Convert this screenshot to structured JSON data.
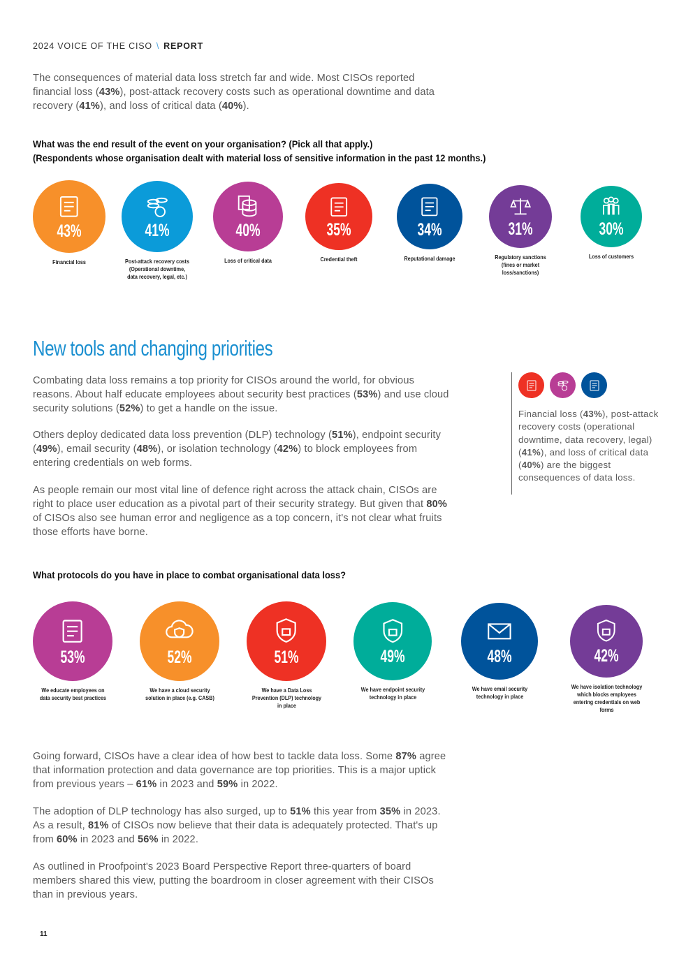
{
  "header": {
    "title": "2024 VOICE OF THE CISO",
    "separator": "\\",
    "section": "REPORT"
  },
  "intro": {
    "parts": [
      "The consequences of material data loss stretch far and wide. Most CISOs reported financial loss (",
      "43%",
      "), post-attack recovery costs such as operational downtime and data recovery (",
      "41%",
      "), and loss of critical data (",
      "40%",
      ")."
    ]
  },
  "question1": {
    "line1": "What was the end result of the event on your organisation? (Pick all that apply.)",
    "line2": "(Respondents whose organisation dealt with material loss of sensitive information in the past 12 months.)"
  },
  "results": [
    {
      "value": "43%",
      "label": "Financial loss",
      "color": "#f7902a",
      "icon": "money-hand-icon"
    },
    {
      "value": "41%",
      "label": "Post-attack recovery costs (Operational downtime, data recovery, legal, etc.)",
      "color": "#0b9bd9",
      "icon": "coins-icon"
    },
    {
      "value": "40%",
      "label": "Loss of critical data",
      "color": "#b83d95",
      "icon": "database-icon"
    },
    {
      "value": "35%",
      "label": "Credential theft",
      "color": "#ee3124",
      "icon": "document-icon"
    },
    {
      "value": "34%",
      "label": "Reputational damage",
      "color": "#00539b",
      "icon": "certificate-icon"
    },
    {
      "value": "31%",
      "label": "Regulatory sanctions (fines or market loss/sanctions)",
      "color": "#743c97",
      "icon": "scales-icon"
    },
    {
      "value": "30%",
      "label": "Loss of customers",
      "color": "#00ad9a",
      "icon": "people-icon"
    }
  ],
  "section2": {
    "title": "New tools and changing priorities",
    "p1": [
      "Combating data loss remains a top priority for CISOs around the world, for obvious reasons. About half educate employees about security best practices (",
      "53%",
      ") and use cloud security solutions (",
      "52%",
      ") to get a handle on the issue."
    ],
    "p2": [
      "Others deploy dedicated data loss prevention (DLP) technology (",
      "51%",
      "), endpoint security (",
      "49%",
      "), email security (",
      "48%",
      "), or isolation technology (",
      "42%",
      ") to block employees from entering credentials on web forms."
    ],
    "p3": [
      "As people remain our most vital line of defence right across the attack chain, CISOs are right to place user education as a pivotal part of their security strategy. But given that ",
      "80%",
      " of CISOs also see human error and negligence as a top concern, it's not clear what fruits those efforts have borne."
    ]
  },
  "sidebar": {
    "icons": [
      {
        "name": "money-icon",
        "color": "#ee3124"
      },
      {
        "name": "coins-icon",
        "color": "#b83d95"
      },
      {
        "name": "document-icon",
        "color": "#00539b"
      }
    ],
    "text": [
      "Financial loss (",
      "43%",
      "), post-attack recovery costs (operational downtime, data recovery, legal) (",
      "41%",
      "), and loss of critical data (",
      "40%",
      ") are the biggest consequences of data loss."
    ]
  },
  "question2": "What protocols do you have in place to combat organisational data loss?",
  "protocols": [
    {
      "value": "53%",
      "label": "We educate employees on data security best practices",
      "color": "#b83d95",
      "icon": "training-icon"
    },
    {
      "value": "52%",
      "label": "We have a cloud security solution in place (e.g. CASB)",
      "color": "#f7902a",
      "icon": "cloud-shield-icon"
    },
    {
      "value": "51%",
      "label": "We have a Data Loss Prevention (DLP) technology in place",
      "color": "#ee3124",
      "icon": "shield-lock-icon"
    },
    {
      "value": "49%",
      "label": "We have endpoint security technology in place",
      "color": "#00ad9a",
      "icon": "network-icon"
    },
    {
      "value": "48%",
      "label": "We have email security technology in place",
      "color": "#00539b",
      "icon": "email-shield-icon"
    },
    {
      "value": "42%",
      "label": "We have isolation technology which blocks employees entering credentials on web forms",
      "color": "#743c97",
      "icon": "browser-lock-icon"
    }
  ],
  "closing": {
    "p1": [
      "Going forward, CISOs have a clear idea of how best to tackle data loss. Some ",
      "87%",
      " agree that information protection and data governance are top priorities. This is a major uptick from previous years – ",
      "61%",
      " in 2023 and ",
      "59%",
      " in 2022."
    ],
    "p2": [
      "The adoption of DLP technology has also surged, up to ",
      "51%",
      " this year from ",
      "35%",
      " in 2023. As a result, ",
      "81%",
      " of CISOs now believe that their data is adequately protected. That's up from ",
      "60%",
      " in 2023 and ",
      "56%",
      " in 2022."
    ],
    "p3": [
      "As outlined in Proofpoint's 2023 Board Perspective Report three-quarters of board members shared this view, putting the boardroom in closer agreement with their CISOs than in previous years."
    ]
  },
  "page_number": "11"
}
